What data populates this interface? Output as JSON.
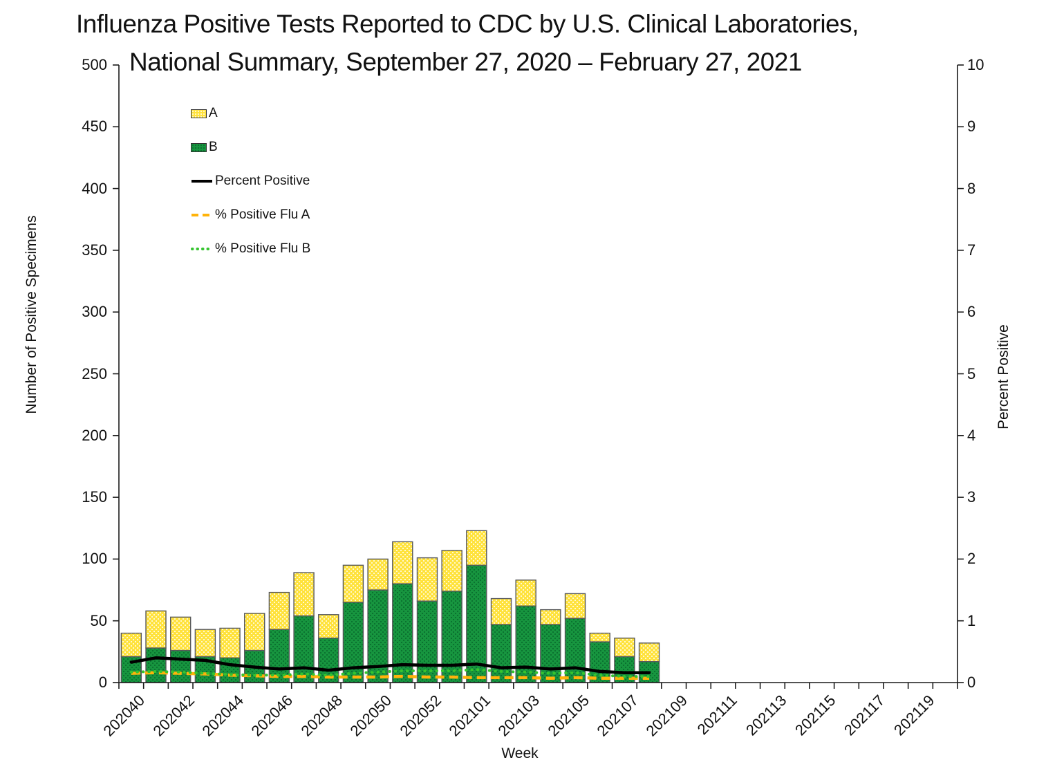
{
  "title": {
    "line1": "Influenza Positive Tests Reported to CDC by U.S. Clinical Laboratories,",
    "line2": "National Summary, September 27, 2020 – February 27, 2021"
  },
  "axes": {
    "left": {
      "title": "Number of Positive Specimens",
      "ticks": [
        0,
        50,
        100,
        150,
        200,
        250,
        300,
        350,
        400,
        450,
        500
      ]
    },
    "right": {
      "title": "Percent Positive",
      "ticks": [
        0,
        1,
        2,
        3,
        4,
        5,
        6,
        7,
        8,
        9,
        10
      ]
    },
    "x": {
      "title": "Week",
      "tick_labels": [
        "202040",
        "202042",
        "202044",
        "202046",
        "202048",
        "202050",
        "202052",
        "202101",
        "202103",
        "202105",
        "202107",
        "202109",
        "202111",
        "202113",
        "202115",
        "202117",
        "202119"
      ]
    }
  },
  "legend": {
    "items": [
      {
        "label": "A",
        "swatch": "yellow-pattern-box"
      },
      {
        "label": "B",
        "swatch": "green-pattern-box"
      },
      {
        "label": "Percent Positive",
        "swatch": "black-solid-line"
      },
      {
        "label": "% Positive Flu A",
        "swatch": "orange-dashed-line"
      },
      {
        "label": "% Positive Flu B",
        "swatch": "green-dotted-line"
      }
    ]
  },
  "colors": {
    "flu_a_bar": "#FFE23C",
    "flu_a_bar_dot": "#FFF9CE",
    "flu_b_bar": "#17953F",
    "flu_b_bar_dot": "#0B7230",
    "bar_border": "#58595B",
    "percent_positive_line": "#000000",
    "pct_flu_a_line": "#FFB30A",
    "pct_flu_b_line": "#35C42F",
    "axis": "#1a1a1a"
  },
  "chart_data": {
    "type": "bar",
    "stacked": true,
    "title": "Influenza Positive Tests Reported to CDC by U.S. Clinical Laboratories, National Summary, September 27, 2020 – February 27, 2021",
    "xlabel": "Week",
    "ylabel_left": "Number of Positive Specimens",
    "ylabel_right": "Percent Positive",
    "ylim_left": [
      0,
      500
    ],
    "ylim_right": [
      0,
      10
    ],
    "grid": false,
    "legend_position": "upper-left-inside",
    "x_axis_total_slots": 34,
    "bar_weeks": [
      "202040",
      "202041",
      "202042",
      "202043",
      "202044",
      "202045",
      "202046",
      "202047",
      "202048",
      "202049",
      "202050",
      "202051",
      "202052",
      "202053",
      "202101",
      "202102",
      "202103",
      "202104",
      "202105",
      "202106",
      "202107",
      "202108"
    ],
    "series": [
      {
        "name": "A",
        "type": "bar",
        "axis": "left",
        "values": [
          19,
          30,
          27,
          22,
          24,
          30,
          30,
          35,
          19,
          30,
          25,
          34,
          35,
          33,
          28,
          21,
          21,
          12,
          20,
          7,
          15,
          15
        ]
      },
      {
        "name": "B",
        "type": "bar",
        "axis": "left",
        "values": [
          21,
          28,
          26,
          21,
          20,
          26,
          43,
          54,
          36,
          65,
          75,
          80,
          66,
          74,
          95,
          47,
          62,
          47,
          52,
          33,
          21,
          17
        ]
      },
      {
        "name": "Percent Positive",
        "type": "line",
        "style": "solid",
        "axis": "right",
        "values": [
          0.33,
          0.4,
          0.38,
          0.36,
          0.29,
          0.25,
          0.22,
          0.24,
          0.2,
          0.24,
          0.26,
          0.29,
          0.28,
          0.28,
          0.3,
          0.24,
          0.25,
          0.22,
          0.24,
          0.18,
          0.16,
          0.16
        ]
      },
      {
        "name": "% Positive Flu A",
        "type": "line",
        "style": "dashed",
        "axis": "right",
        "values": [
          0.15,
          0.16,
          0.15,
          0.14,
          0.12,
          0.11,
          0.1,
          0.1,
          0.09,
          0.09,
          0.09,
          0.1,
          0.09,
          0.09,
          0.08,
          0.08,
          0.08,
          0.07,
          0.08,
          0.07,
          0.07,
          0.07
        ]
      },
      {
        "name": "% Positive Flu B",
        "type": "line",
        "style": "dotted",
        "axis": "right",
        "values": [
          0.17,
          0.18,
          0.17,
          0.15,
          0.13,
          0.12,
          0.12,
          0.14,
          0.12,
          0.15,
          0.17,
          0.19,
          0.19,
          0.19,
          0.21,
          0.18,
          0.17,
          0.15,
          0.16,
          0.12,
          0.1,
          0.1
        ]
      }
    ]
  }
}
